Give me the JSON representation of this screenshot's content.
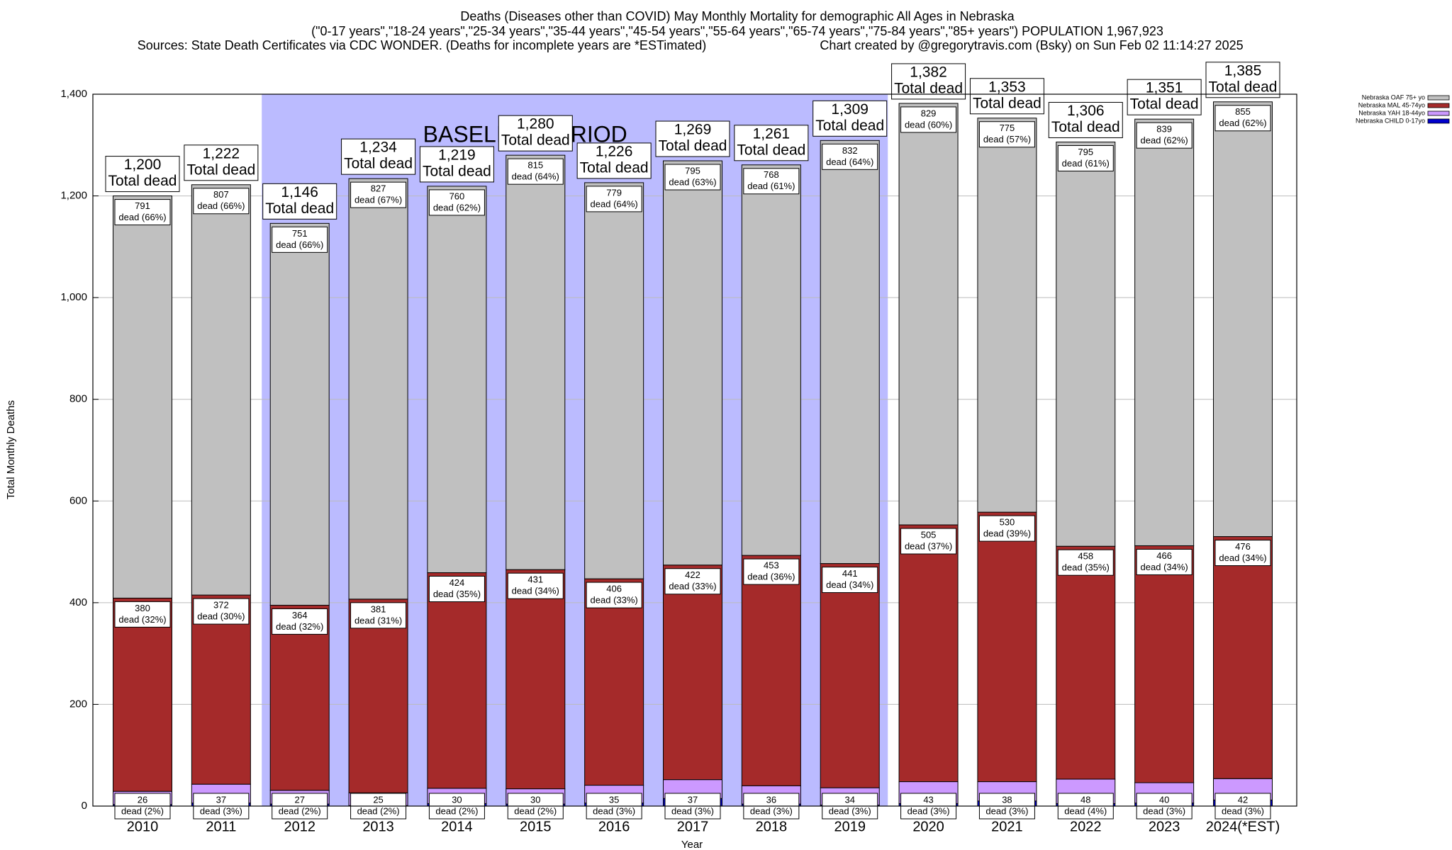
{
  "chart_data": {
    "type": "stacked_bar",
    "title": "Deaths (Diseases other than COVID) May Monthly Mortality for demographic All Ages in Nebraska",
    "subtitle": "(\"0-17 years\",\"18-24 years\",\"25-34 years\",\"35-44 years\",\"45-54 years\",\"55-64 years\",\"65-74 years\",\"75-84 years\",\"85+ years\") POPULATION 1,967,923",
    "source": "Sources: State Death Certificates via CDC WONDER. (Deaths for incomplete years are *ESTimated)",
    "credit": "Chart created by @gregorytravis.com (Bsky) on Sun Feb 02 11:14:27 2025",
    "xlabel": "Year",
    "ylabel": "Total Monthly Deaths",
    "categories": [
      "2010",
      "2011",
      "2012",
      "2013",
      "2014",
      "2015",
      "2016",
      "2017",
      "2018",
      "2019",
      "2020",
      "2021",
      "2022",
      "2023",
      "2024(*EST)"
    ],
    "series": [
      {
        "name": "Nebraska OAF 75+ yo",
        "color": "#c0c0c0",
        "values": [
          791,
          807,
          751,
          827,
          760,
          815,
          779,
          795,
          768,
          832,
          829,
          775,
          795,
          839,
          855
        ],
        "share_labels": [
          "dead (66%)",
          "dead (66%)",
          "dead (66%)",
          "dead (67%)",
          "dead (62%)",
          "dead (64%)",
          "dead (64%)",
          "dead (63%)",
          "dead (61%)",
          "dead (64%)",
          "dead (60%)",
          "dead (57%)",
          "dead (61%)",
          "dead (62%)",
          "dead (62%)"
        ]
      },
      {
        "name": "Nebraska MAL 45-74yo",
        "color": "#a52a2a",
        "values": [
          380,
          372,
          364,
          381,
          424,
          431,
          406,
          422,
          453,
          441,
          505,
          530,
          458,
          466,
          476
        ],
        "share_labels": [
          "dead (32%)",
          "dead (30%)",
          "dead (32%)",
          "dead (31%)",
          "dead (35%)",
          "dead (34%)",
          "dead (33%)",
          "dead (33%)",
          "dead (36%)",
          "dead (34%)",
          "dead (37%)",
          "dead (39%)",
          "dead (35%)",
          "dead (34%)",
          "dead (34%)"
        ]
      },
      {
        "name": "Nebraska YAH 18-44yo",
        "color": "#cc99ff",
        "values": [
          26,
          37,
          27,
          25,
          30,
          30,
          35,
          37,
          36,
          34,
          43,
          38,
          48,
          40,
          42
        ],
        "share_labels": [
          "dead (2%)",
          "dead (3%)",
          "dead (2%)",
          "dead (2%)",
          "dead (2%)",
          "dead (2%)",
          "dead (3%)",
          "dead (3%)",
          "dead (3%)",
          "dead (3%)",
          "dead (3%)",
          "dead (3%)",
          "dead (4%)",
          "dead (3%)",
          "dead (3%)"
        ]
      },
      {
        "name": "Nebraska CHILD 0-17yo",
        "color": "#0000cc",
        "values": [
          3,
          6,
          4,
          1,
          5,
          4,
          6,
          15,
          4,
          2,
          5,
          10,
          5,
          6,
          12
        ]
      }
    ],
    "totals": {
      "values": [
        1200,
        1222,
        1146,
        1234,
        1219,
        1280,
        1226,
        1269,
        1261,
        1309,
        1382,
        1353,
        1306,
        1351,
        1385
      ],
      "value_labels": [
        "1,200",
        "1,222",
        "1,146",
        "1,234",
        "1,219",
        "1,280",
        "1,226",
        "1,269",
        "1,261",
        "1,309",
        "1,382",
        "1,353",
        "1,306",
        "1,351",
        "1,385"
      ],
      "label": "Total dead"
    },
    "baseline": {
      "label": "BASELINE PERIOD",
      "start": "2012",
      "end": "2019",
      "color": "#bbbbff"
    },
    "ylim": [
      0,
      1400
    ],
    "yticks": [
      0,
      {
        "value": 200,
        "label": "200"
      },
      400,
      600,
      800,
      {
        "value": 1000,
        "label": "1,000"
      },
      {
        "value": 1200,
        "label": "1,200"
      },
      {
        "value": 1400,
        "label": "1,400"
      }
    ],
    "grid": true,
    "legend": "top-right"
  }
}
